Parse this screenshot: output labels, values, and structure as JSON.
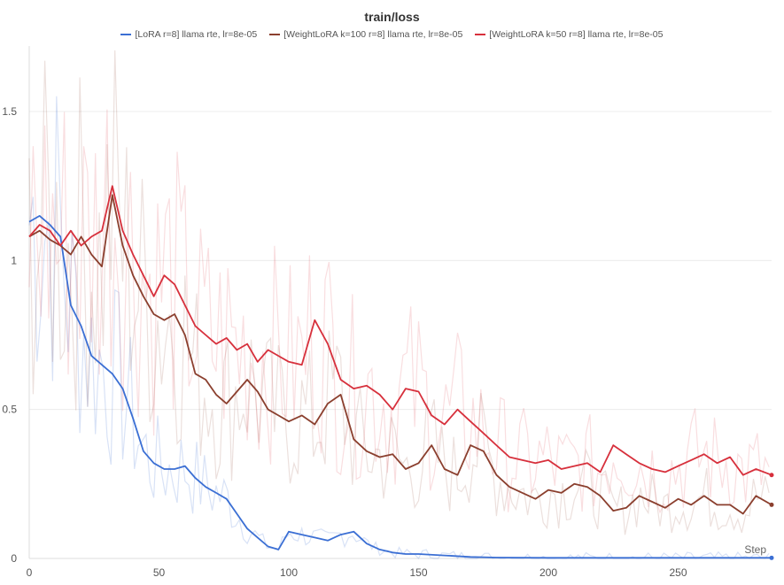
{
  "chart_data": {
    "type": "line",
    "title": "train/loss",
    "xlabel": "Step",
    "ylabel": "",
    "xlim": [
      0,
      286
    ],
    "ylim": [
      0,
      1.72
    ],
    "xticks": [
      0,
      50,
      100,
      150,
      200,
      250
    ],
    "xtick_labels": [
      "0",
      "50",
      "100",
      "150",
      "200",
      "250"
    ],
    "yticks": [
      0,
      0.5,
      1,
      1.5
    ],
    "ytick_labels": [
      "0",
      "0.5",
      "1",
      "1.5"
    ],
    "grid": true,
    "legend_position": "top-center",
    "series": [
      {
        "name": "[LoRA r=8] llama rte, lr=8e-05",
        "color": "#3b6fd4",
        "x": [
          0,
          4,
          8,
          12,
          16,
          20,
          24,
          28,
          32,
          36,
          40,
          44,
          48,
          52,
          56,
          60,
          64,
          68,
          72,
          76,
          80,
          84,
          88,
          92,
          96,
          100,
          105,
          110,
          115,
          120,
          125,
          130,
          135,
          140,
          145,
          150,
          160,
          170,
          180,
          200,
          220,
          250,
          286
        ],
        "y": [
          1.13,
          1.15,
          1.12,
          1.08,
          0.85,
          0.78,
          0.68,
          0.65,
          0.62,
          0.57,
          0.47,
          0.36,
          0.32,
          0.3,
          0.3,
          0.31,
          0.27,
          0.24,
          0.22,
          0.2,
          0.15,
          0.1,
          0.07,
          0.04,
          0.03,
          0.09,
          0.08,
          0.07,
          0.06,
          0.08,
          0.09,
          0.05,
          0.03,
          0.02,
          0.015,
          0.015,
          0.01,
          0.005,
          0.003,
          0.002,
          0.002,
          0.002,
          0.002
        ]
      },
      {
        "name": "[WeightLoRA k=100 r=8] llama rte, lr=8e-05",
        "color": "#8b3f2e",
        "x": [
          0,
          4,
          8,
          12,
          16,
          20,
          24,
          28,
          32,
          36,
          40,
          44,
          48,
          52,
          56,
          60,
          64,
          68,
          72,
          76,
          80,
          84,
          88,
          92,
          96,
          100,
          105,
          110,
          115,
          120,
          125,
          130,
          135,
          140,
          145,
          150,
          155,
          160,
          165,
          170,
          175,
          180,
          185,
          190,
          195,
          200,
          205,
          210,
          215,
          220,
          225,
          230,
          235,
          240,
          245,
          250,
          255,
          260,
          265,
          270,
          275,
          280,
          286
        ],
        "y": [
          1.08,
          1.1,
          1.07,
          1.05,
          1.02,
          1.08,
          1.02,
          0.98,
          1.22,
          1.05,
          0.95,
          0.88,
          0.82,
          0.8,
          0.82,
          0.75,
          0.62,
          0.6,
          0.55,
          0.52,
          0.56,
          0.6,
          0.56,
          0.5,
          0.48,
          0.46,
          0.48,
          0.45,
          0.52,
          0.55,
          0.4,
          0.36,
          0.34,
          0.35,
          0.3,
          0.32,
          0.38,
          0.3,
          0.28,
          0.38,
          0.36,
          0.28,
          0.24,
          0.22,
          0.2,
          0.23,
          0.22,
          0.25,
          0.24,
          0.21,
          0.16,
          0.17,
          0.21,
          0.19,
          0.17,
          0.2,
          0.18,
          0.21,
          0.18,
          0.18,
          0.15,
          0.21,
          0.18
        ]
      },
      {
        "name": "[WeightLoRA k=50 r=8] llama rte, lr=8e-05",
        "color": "#d7303c",
        "x": [
          0,
          4,
          8,
          12,
          16,
          20,
          24,
          28,
          32,
          36,
          40,
          44,
          48,
          52,
          56,
          60,
          64,
          68,
          72,
          76,
          80,
          84,
          88,
          92,
          96,
          100,
          105,
          110,
          115,
          120,
          125,
          130,
          135,
          140,
          145,
          150,
          155,
          160,
          165,
          170,
          175,
          180,
          185,
          190,
          195,
          200,
          205,
          210,
          215,
          220,
          225,
          230,
          235,
          240,
          245,
          250,
          255,
          260,
          265,
          270,
          275,
          280,
          286
        ],
        "y": [
          1.08,
          1.12,
          1.1,
          1.05,
          1.1,
          1.05,
          1.08,
          1.1,
          1.25,
          1.1,
          1.02,
          0.95,
          0.88,
          0.95,
          0.92,
          0.85,
          0.78,
          0.75,
          0.72,
          0.74,
          0.7,
          0.72,
          0.66,
          0.7,
          0.68,
          0.66,
          0.65,
          0.8,
          0.72,
          0.6,
          0.57,
          0.58,
          0.55,
          0.5,
          0.57,
          0.56,
          0.48,
          0.45,
          0.5,
          0.46,
          0.42,
          0.38,
          0.34,
          0.33,
          0.32,
          0.33,
          0.3,
          0.31,
          0.32,
          0.29,
          0.38,
          0.35,
          0.32,
          0.3,
          0.29,
          0.31,
          0.33,
          0.35,
          0.32,
          0.34,
          0.28,
          0.3,
          0.28
        ]
      }
    ]
  }
}
